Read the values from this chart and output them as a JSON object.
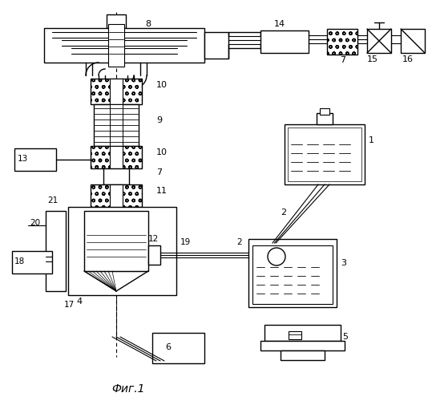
{
  "title": "Фиг.1",
  "bg_color": "#ffffff",
  "fig_width": 5.39,
  "fig_height": 5.0,
  "dpi": 100
}
